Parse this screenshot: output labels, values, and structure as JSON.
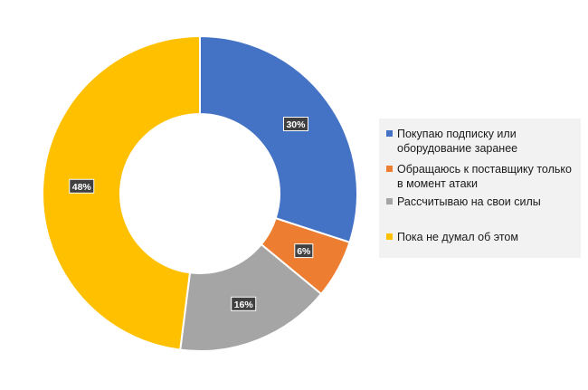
{
  "chart_data": {
    "type": "pie",
    "subtype": "doughnut",
    "series": [
      {
        "label": "Покупаю подписку или оборудование заранее",
        "value": 30,
        "value_label": "30%",
        "color": "#4472c4"
      },
      {
        "label": "Обращаюсь к поставщику только в момент атаки",
        "value": 6,
        "value_label": "6%",
        "color": "#ed7d31"
      },
      {
        "label": "Рассчитываю на свои силы",
        "value": 16,
        "value_label": "16%",
        "color": "#a5a5a5"
      },
      {
        "label": "Пока не думал об этом",
        "value": 48,
        "value_label": "48%",
        "color": "#ffc000"
      }
    ],
    "legend_position": "right",
    "data_label_style": "dark box, white text"
  }
}
